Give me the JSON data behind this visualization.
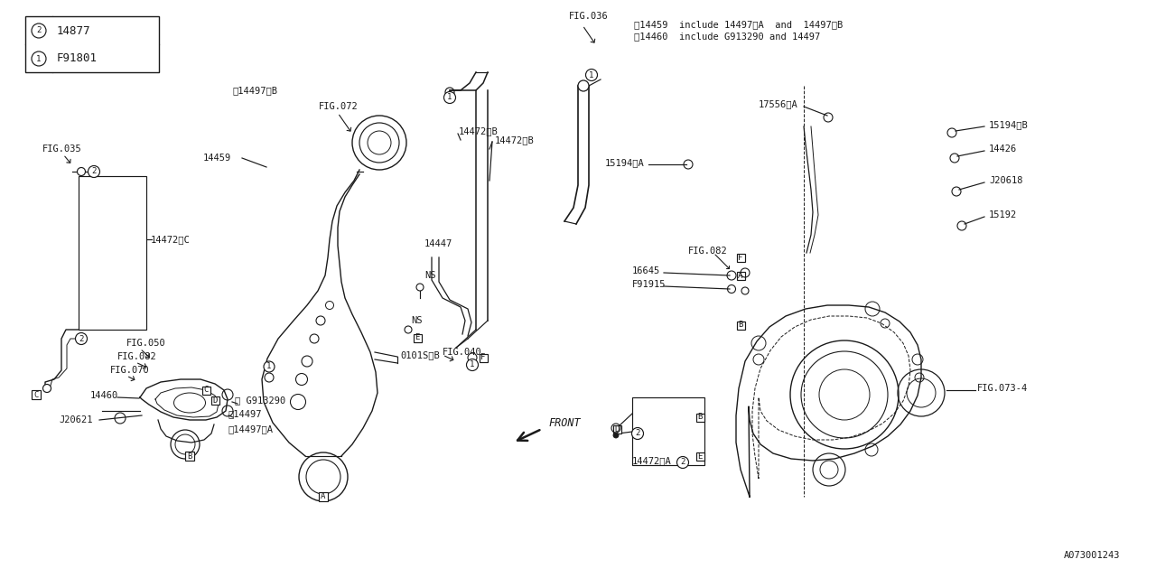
{
  "bg_color": "#ffffff",
  "line_color": "#1a1a1a",
  "diagram_id": "A073001243",
  "legend": [
    {
      "num": "1",
      "code": "F91801"
    },
    {
      "num": "2",
      "code": "14877"
    }
  ],
  "notes": [
    "※14459  include 14497※A  and  14497※B",
    "※14460  include G913290 and 14497"
  ],
  "font_mono": "monospace",
  "fs_small": 7.0,
  "fs_label": 7.5,
  "fs_note": 7.5
}
